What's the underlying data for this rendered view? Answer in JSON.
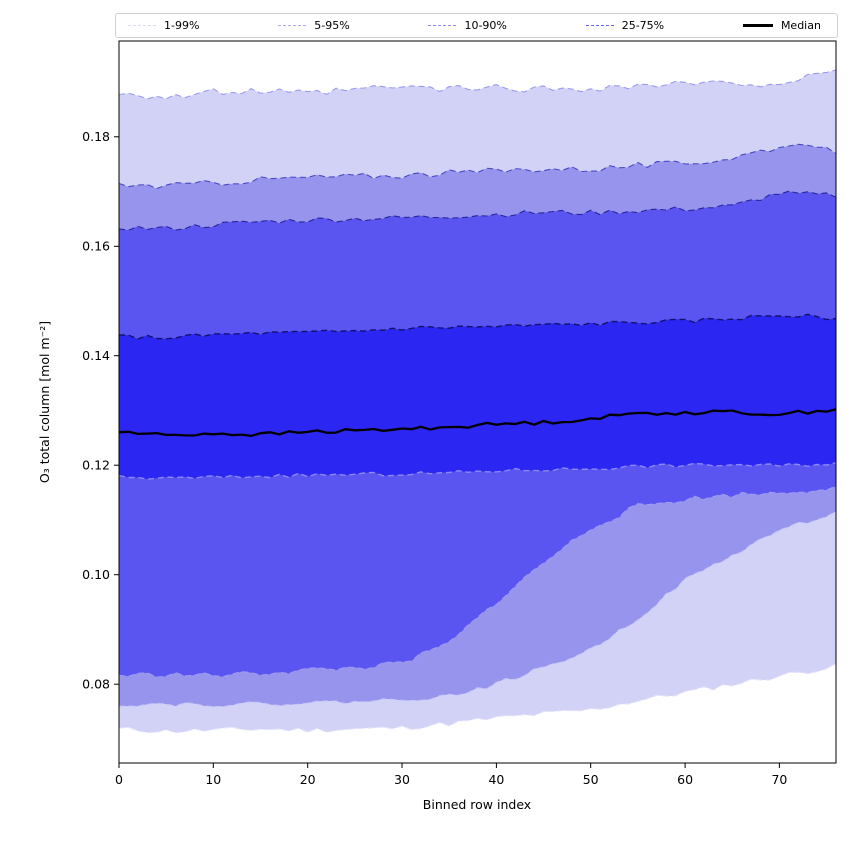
{
  "chart_data": {
    "type": "area",
    "title": "",
    "xlabel": "Binned row index",
    "ylabel": "O₃ total column [mol m⁻²]",
    "xlim": [
      0,
      76
    ],
    "ylim": [
      0.0656,
      0.1975
    ],
    "xticks": [
      0,
      10,
      20,
      30,
      40,
      50,
      60,
      70
    ],
    "yticks": [
      0.08,
      0.1,
      0.12,
      0.14,
      0.16,
      0.18
    ],
    "grid": false,
    "legend_position": "top outside axes, expanded full width",
    "anchor_x": [
      0,
      5,
      10,
      15,
      20,
      25,
      30,
      35,
      40,
      45,
      50,
      55,
      60,
      65,
      70,
      75
    ],
    "percentiles": {
      "p1": [
        0.0718,
        0.0714,
        0.0716,
        0.0718,
        0.0716,
        0.0718,
        0.072,
        0.0728,
        0.0738,
        0.0746,
        0.0753,
        0.077,
        0.0785,
        0.08,
        0.0815,
        0.083
      ],
      "p5": [
        0.0763,
        0.0764,
        0.0763,
        0.0764,
        0.0766,
        0.0768,
        0.0772,
        0.0778,
        0.08,
        0.083,
        0.0863,
        0.092,
        0.099,
        0.1035,
        0.1082,
        0.1108
      ],
      "p10": [
        0.0816,
        0.0818,
        0.0816,
        0.082,
        0.0826,
        0.083,
        0.0838,
        0.0875,
        0.095,
        0.1022,
        0.1085,
        0.1125,
        0.1138,
        0.1146,
        0.115,
        0.1158
      ],
      "p25": [
        0.1178,
        0.1176,
        0.1178,
        0.118,
        0.1182,
        0.1183,
        0.1184,
        0.1186,
        0.119,
        0.1192,
        0.1194,
        0.1198,
        0.12,
        0.1201,
        0.1199,
        0.1203
      ],
      "median": [
        0.1261,
        0.1255,
        0.1258,
        0.1256,
        0.1261,
        0.1263,
        0.1266,
        0.127,
        0.1275,
        0.1278,
        0.1285,
        0.1295,
        0.1296,
        0.1297,
        0.1293,
        0.1301
      ],
      "p75": [
        0.1435,
        0.1433,
        0.1438,
        0.1441,
        0.1442,
        0.1445,
        0.145,
        0.1452,
        0.1453,
        0.1456,
        0.1458,
        0.1461,
        0.1463,
        0.1468,
        0.1474,
        0.147
      ],
      "p90": [
        0.1634,
        0.1632,
        0.1639,
        0.1645,
        0.1648,
        0.165,
        0.1652,
        0.1655,
        0.1658,
        0.1662,
        0.1661,
        0.1665,
        0.1668,
        0.1673,
        0.1697,
        0.1693
      ],
      "p95": [
        0.1712,
        0.171,
        0.1716,
        0.1722,
        0.1726,
        0.1728,
        0.173,
        0.1734,
        0.1738,
        0.1742,
        0.1741,
        0.1748,
        0.1751,
        0.1762,
        0.1783,
        0.1776
      ],
      "p99": [
        0.1882,
        0.1872,
        0.1881,
        0.1883,
        0.1878,
        0.1886,
        0.1891,
        0.1887,
        0.189,
        0.1887,
        0.1889,
        0.1893,
        0.1897,
        0.1896,
        0.1899,
        0.1913
      ]
    },
    "wiggle": {
      "p1": 0.0005,
      "p5": 0.0004,
      "p10": 0.0005,
      "p25": 0.00035,
      "median": 0.00035,
      "p75": 0.0004,
      "p90": 0.0005,
      "p95": 0.0006,
      "p99": 0.0007
    },
    "seeds": {
      "p1": 11,
      "p5": 22,
      "p10": 33,
      "p25": 44,
      "median": 55,
      "p75": 66,
      "p90": 77,
      "p95": 88,
      "p99": 99
    },
    "bands": [
      {
        "label": "1-99%",
        "lower": "p1",
        "upper": "p99",
        "fill": "#d2d2f7",
        "legend_color": "#d9d9f5",
        "upper_edge": "#9a9af0",
        "lower_edge": "#e4e4fb"
      },
      {
        "label": "5-95%",
        "lower": "p5",
        "upper": "p95",
        "fill": "#9694ec",
        "legend_color": "#a9a8ef",
        "upper_edge": "#4a49c4",
        "lower_edge": "#c6c5f7"
      },
      {
        "label": "10-90%",
        "lower": "p10",
        "upper": "p90",
        "fill": "#5a55f0",
        "legend_color": "#8c8af0",
        "upper_edge": "#262699",
        "lower_edge": "#9f9cf2"
      },
      {
        "label": "25-75%",
        "lower": "p25",
        "upper": "p75",
        "fill": "#2b26f2",
        "legend_color": "#6663ee",
        "upper_edge": "#12126e",
        "lower_edge": "#8b89f5"
      }
    ],
    "median": {
      "label": "Median",
      "color": "#000000",
      "series_key": "median"
    }
  }
}
